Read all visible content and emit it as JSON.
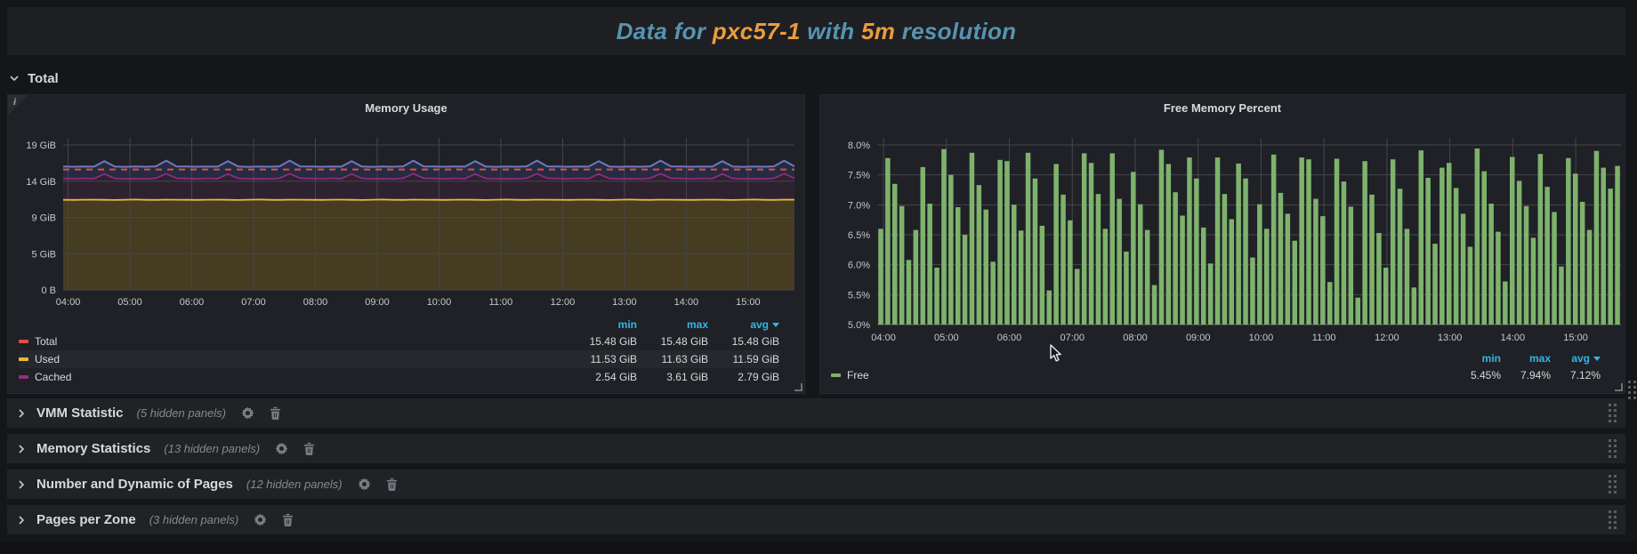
{
  "header": {
    "title_parts": [
      {
        "text": "Data for ",
        "color": "#5794b0"
      },
      {
        "text": "pxc57-1",
        "color": "#eb9b3c"
      },
      {
        "text": " with ",
        "color": "#5794b0"
      },
      {
        "text": "5m",
        "color": "#eb9b3c"
      },
      {
        "text": " resolution",
        "color": "#5794b0"
      }
    ]
  },
  "total_row": {
    "label": "Total"
  },
  "panels": {
    "memory_usage": {
      "title": "Memory Usage",
      "info_icon": "i"
    },
    "free_memory": {
      "title": "Free Memory Percent"
    }
  },
  "collapsed_rows": [
    {
      "title": "VMM Statistic",
      "hidden": "(5 hidden panels)"
    },
    {
      "title": "Memory Statistics",
      "hidden": "(13 hidden panels)"
    },
    {
      "title": "Number and Dynamic of Pages",
      "hidden": "(12 hidden panels)"
    },
    {
      "title": "Pages per Zone",
      "hidden": "(3 hidden panels)"
    }
  ],
  "chart_data": [
    {
      "type": "line",
      "title": "Memory Usage",
      "legend_headers": [
        "min",
        "max",
        "avg"
      ],
      "y_ticks": [
        "19 GiB",
        "14 GiB",
        "9 GiB",
        "5 GiB",
        "0 B"
      ],
      "y_scale_max": 18.63,
      "x_ticks": [
        "04:00",
        "05:00",
        "06:00",
        "07:00",
        "08:00",
        "09:00",
        "10:00",
        "11:00",
        "12:00",
        "13:00",
        "14:00",
        "15:00"
      ],
      "x_tick_hours": [
        4,
        5,
        6,
        7,
        8,
        9,
        10,
        11,
        12,
        13,
        14,
        15
      ],
      "time_start_h": 3.92,
      "time_end_h": 15.75,
      "n": 72,
      "grid": true,
      "legend_position": "bottom",
      "series": [
        {
          "name": "Total",
          "role": "total",
          "color": "#e24d42",
          "line": "dashed",
          "const": 15.48,
          "min": "15.48 GiB",
          "max": "15.48 GiB",
          "avg": "15.48 GiB"
        },
        {
          "name": "Used",
          "role": "used",
          "color": "#eab839",
          "fill": "#453c22",
          "min": "11.53 GiB",
          "max": "11.63 GiB",
          "avg": "11.59 GiB",
          "values": [
            11.58,
            11.57,
            11.59,
            11.6,
            11.58,
            11.56,
            11.59,
            11.61,
            11.58,
            11.57,
            11.6,
            11.59,
            11.58,
            11.57,
            11.59,
            11.6,
            11.58,
            11.56,
            11.59,
            11.61,
            11.58,
            11.57,
            11.6,
            11.59,
            11.58,
            11.57,
            11.59,
            11.6,
            11.58,
            11.56,
            11.59,
            11.61,
            11.58,
            11.57,
            11.6,
            11.59,
            11.58,
            11.57,
            11.59,
            11.6,
            11.58,
            11.56,
            11.59,
            11.61,
            11.58,
            11.57,
            11.6,
            11.59,
            11.58,
            11.57,
            11.59,
            11.6,
            11.58,
            11.56,
            11.59,
            11.61,
            11.58,
            11.57,
            11.6,
            11.59,
            11.58,
            11.57,
            11.59,
            11.6,
            11.58,
            11.56,
            11.59,
            11.61,
            11.58,
            11.57,
            11.6,
            11.59
          ]
        },
        {
          "name": "Cached",
          "role": "cached_top",
          "color": "#962d82",
          "fill": "#2f2230",
          "min": "2.54 GiB",
          "max": "3.61 GiB",
          "avg": "2.79 GiB",
          "values": [
            14.32,
            14.28,
            14.34,
            14.3,
            14.9,
            14.33,
            14.27,
            14.31,
            14.26,
            14.35,
            14.93,
            14.36,
            14.32,
            14.28,
            14.34,
            14.3,
            14.9,
            14.33,
            14.27,
            14.31,
            14.26,
            14.35,
            14.93,
            14.36,
            14.32,
            14.28,
            14.34,
            14.3,
            14.9,
            14.33,
            14.27,
            14.31,
            14.26,
            14.35,
            14.93,
            14.36,
            14.32,
            14.28,
            14.34,
            14.3,
            14.9,
            14.33,
            14.27,
            14.31,
            14.26,
            14.35,
            14.93,
            14.36,
            14.32,
            14.28,
            14.34,
            14.3,
            14.9,
            14.33,
            14.27,
            14.31,
            14.26,
            14.35,
            14.93,
            14.36,
            14.32,
            14.28,
            14.34,
            14.3,
            14.9,
            14.33,
            14.27,
            14.31,
            14.26,
            14.35,
            14.93,
            14.36
          ]
        },
        {
          "name": "",
          "role": "stack_top",
          "color": "#6d78c1",
          "fill": "#252c42",
          "values": [
            15.85,
            15.83,
            15.86,
            15.84,
            16.55,
            15.86,
            15.82,
            15.85,
            15.83,
            15.87,
            16.62,
            15.88,
            15.85,
            15.83,
            15.86,
            15.84,
            16.55,
            15.86,
            15.82,
            15.85,
            15.83,
            15.87,
            16.62,
            15.88,
            15.85,
            15.83,
            15.86,
            15.84,
            16.55,
            15.86,
            15.82,
            15.85,
            15.83,
            15.87,
            16.62,
            15.88,
            15.85,
            15.83,
            15.86,
            15.84,
            16.55,
            15.86,
            15.82,
            15.85,
            15.83,
            15.87,
            16.62,
            15.88,
            15.85,
            15.83,
            15.86,
            15.84,
            16.55,
            15.86,
            15.82,
            15.85,
            15.83,
            15.87,
            16.62,
            15.88,
            15.85,
            15.83,
            15.86,
            15.84,
            16.55,
            15.86,
            15.82,
            15.85,
            15.83,
            15.87,
            16.62,
            15.88
          ]
        }
      ]
    },
    {
      "type": "bar",
      "title": "Free Memory Percent",
      "legend_headers": [
        "min",
        "max",
        "avg"
      ],
      "y_ticks": [
        "8.0%",
        "7.5%",
        "7.0%",
        "6.5%",
        "6.0%",
        "5.5%",
        "5.0%"
      ],
      "ymin": 5.0,
      "ymax": 8.0,
      "x_ticks": [
        "04:00",
        "05:00",
        "06:00",
        "07:00",
        "08:00",
        "09:00",
        "10:00",
        "11:00",
        "12:00",
        "13:00",
        "14:00",
        "15:00"
      ],
      "x_tick_hours": [
        4,
        5,
        6,
        7,
        8,
        9,
        10,
        11,
        12,
        13,
        14,
        15
      ],
      "time_start_h": 3.9,
      "time_end_h": 15.72,
      "grid": true,
      "legend_position": "bottom",
      "series": [
        {
          "name": "Free",
          "color": "#7eb26d",
          "min": "5.45%",
          "max": "7.94%",
          "avg": "7.12%",
          "values": [
            6.6,
            7.78,
            7.35,
            6.98,
            6.08,
            6.58,
            7.63,
            7.02,
            5.95,
            7.93,
            7.5,
            6.96,
            6.5,
            7.87,
            7.33,
            6.92,
            6.05,
            7.75,
            7.73,
            7.0,
            6.57,
            7.87,
            7.44,
            6.65,
            5.57,
            7.68,
            7.17,
            6.74,
            5.93,
            7.86,
            7.7,
            7.18,
            6.6,
            7.86,
            7.1,
            6.22,
            7.55,
            7.01,
            6.58,
            5.66,
            7.92,
            7.68,
            7.21,
            6.82,
            7.79,
            7.44,
            6.62,
            6.02,
            7.79,
            7.18,
            6.76,
            7.69,
            7.44,
            6.12,
            7.01,
            6.6,
            7.84,
            7.2,
            6.85,
            6.4,
            7.79,
            7.76,
            7.1,
            6.81,
            5.71,
            7.77,
            7.39,
            6.97,
            5.45,
            7.73,
            7.17,
            6.53,
            5.95,
            7.76,
            7.27,
            6.6,
            5.62,
            7.91,
            7.45,
            6.35,
            7.62,
            7.7,
            7.28,
            6.85,
            6.3,
            7.94,
            7.56,
            7.02,
            6.55,
            5.72,
            7.8,
            7.4,
            6.98,
            6.45,
            7.85,
            7.3,
            6.88,
            5.97,
            7.78,
            7.52,
            7.05,
            6.58,
            7.9,
            7.62,
            7.27,
            7.65
          ]
        }
      ]
    }
  ]
}
